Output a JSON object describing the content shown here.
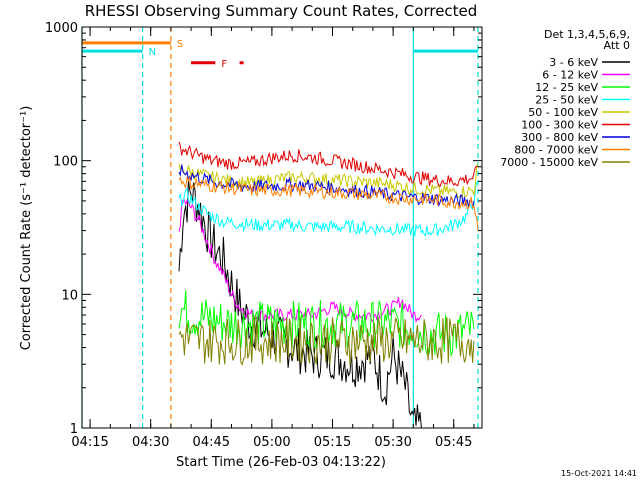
{
  "page": {
    "title": "RHESSI Observing Summary Count Rates, Corrected",
    "timestamp": "15-Oct-2021 14:41"
  },
  "chart_data": {
    "type": "line",
    "title": "RHESSI Observing Summary Count Rates, Corrected",
    "xlabel": "Start Time (26-Feb-03 04:13:22)",
    "ylabel": "Corrected Count Rate (s⁻¹ detector⁻¹)",
    "y_scale": "log",
    "ylim": [
      1,
      1000
    ],
    "xlim": [
      "04:13",
      "05:52"
    ],
    "grid": false,
    "legend_position": "right",
    "legend_header": [
      "Det 1,3,4,5,6,9,",
      "Att 0"
    ],
    "x_ticks": [
      "04:15",
      "04:30",
      "04:45",
      "05:00",
      "05:15",
      "05:30",
      "05:45"
    ],
    "y_ticks": [
      {
        "value": 1,
        "label": "1"
      },
      {
        "value": 10,
        "label": "10"
      },
      {
        "value": 100,
        "label": "100"
      },
      {
        "value": 1000,
        "label": "1000"
      }
    ],
    "flag_bars": [
      {
        "label": "S",
        "color": "#ff8000",
        "segments": [
          [
            "04:13",
            "04:35"
          ]
        ],
        "level": 760
      },
      {
        "label": "N",
        "color": "#00e0e0",
        "segments": [
          [
            "04:13",
            "04:28"
          ],
          [
            "05:35",
            "05:51"
          ]
        ],
        "level": 660
      },
      {
        "label": "F",
        "color": "#e00000",
        "segments": [
          [
            "04:40",
            "04:46"
          ],
          [
            "04:52",
            "04:53"
          ]
        ],
        "level": 540
      }
    ],
    "vertical_markers": [
      {
        "time": "04:13",
        "color": "#00e0e0",
        "style": "solid"
      },
      {
        "time": "04:28",
        "color": "#00e0e0",
        "style": "dashed"
      },
      {
        "time": "04:35",
        "color": "#ff8000",
        "style": "dashed"
      },
      {
        "time": "05:35",
        "color": "#00e0e0",
        "style": "solid"
      },
      {
        "time": "05:51",
        "color": "#00e0e0",
        "style": "dashed"
      }
    ],
    "series": [
      {
        "name": "3 - 6 keV",
        "color": "#000000",
        "x": [
          "04:37",
          "04:38",
          "04:40",
          "04:42",
          "04:44",
          "04:46",
          "04:48",
          "04:50",
          "04:52",
          "04:55",
          "05:00",
          "05:05",
          "05:10",
          "05:15",
          "05:20",
          "05:25",
          "05:28",
          "05:30",
          "05:33",
          "05:35",
          "05:37"
        ],
        "y": [
          15,
          40,
          60,
          45,
          30,
          22,
          18,
          12,
          8,
          6,
          5,
          4,
          3.5,
          3.5,
          3,
          3.5,
          2,
          3.5,
          2,
          1,
          1
        ]
      },
      {
        "name": "6 - 12 keV",
        "color": "#ff00ff",
        "x": [
          "04:37",
          "04:38",
          "04:40",
          "04:42",
          "04:44",
          "04:46",
          "04:48",
          "04:50",
          "04:52",
          "04:55",
          "05:00",
          "05:05",
          "05:10",
          "05:15",
          "05:20",
          "05:25",
          "05:30",
          "05:32",
          "05:35",
          "05:37"
        ],
        "y": [
          30,
          50,
          45,
          35,
          25,
          18,
          14,
          10,
          8,
          7,
          7,
          7,
          7,
          8,
          7,
          7,
          8,
          9,
          7,
          7
        ]
      },
      {
        "name": "12 - 25 keV",
        "color": "#00ff00",
        "x": [
          "04:37",
          "04:40",
          "04:45",
          "04:50",
          "04:55",
          "05:00",
          "05:05",
          "05:10",
          "05:15",
          "05:20",
          "05:25",
          "05:30",
          "05:35",
          "05:40",
          "05:45",
          "05:50"
        ],
        "y": [
          8,
          7,
          6.5,
          6,
          6,
          6,
          6,
          6,
          6,
          6,
          6,
          6,
          5.5,
          5,
          5,
          5.5
        ]
      },
      {
        "name": "25 - 50 keV",
        "color": "#00ffff",
        "x": [
          "04:37",
          "04:39",
          "04:41",
          "04:44",
          "04:48",
          "04:52",
          "04:56",
          "05:00",
          "05:05",
          "05:10",
          "05:15",
          "05:20",
          "05:25",
          "05:30",
          "05:35",
          "05:40",
          "05:45",
          "05:48",
          "05:50",
          "05:51"
        ],
        "y": [
          50,
          55,
          48,
          40,
          35,
          34,
          33,
          33,
          33,
          32,
          32,
          32,
          31,
          31,
          30,
          30,
          33,
          38,
          50,
          70
        ]
      },
      {
        "name": "50 - 100 keV",
        "color": "#c8c800",
        "x": [
          "04:37",
          "04:40",
          "04:45",
          "04:50",
          "04:55",
          "05:00",
          "05:05",
          "05:10",
          "05:15",
          "05:20",
          "05:25",
          "05:30",
          "05:35",
          "05:40",
          "05:45",
          "05:50",
          "05:51"
        ],
        "y": [
          88,
          82,
          75,
          70,
          68,
          72,
          75,
          74,
          72,
          70,
          68,
          66,
          62,
          60,
          58,
          60,
          95
        ]
      },
      {
        "name": "100 - 300 keV",
        "color": "#e00000",
        "x": [
          "04:37",
          "04:40",
          "04:45",
          "04:50",
          "04:55",
          "05:00",
          "05:05",
          "05:10",
          "05:15",
          "05:20",
          "05:25",
          "05:30",
          "05:35",
          "05:40",
          "05:45",
          "05:50",
          "05:51"
        ],
        "y": [
          125,
          115,
          100,
          95,
          97,
          105,
          110,
          106,
          100,
          94,
          88,
          82,
          76,
          72,
          70,
          75,
          90
        ]
      },
      {
        "name": "300 - 800 keV",
        "color": "#0000e0",
        "x": [
          "04:37",
          "04:40",
          "04:45",
          "04:50",
          "04:55",
          "05:00",
          "05:05",
          "05:10",
          "05:15",
          "05:20",
          "05:25",
          "05:30",
          "05:35",
          "05:40",
          "05:45",
          "05:50"
        ],
        "y": [
          85,
          78,
          70,
          66,
          64,
          65,
          66,
          65,
          63,
          60,
          58,
          55,
          53,
          52,
          50,
          50
        ]
      },
      {
        "name": "800 - 7000 keV",
        "color": "#ff8000",
        "x": [
          "04:37",
          "04:40",
          "04:45",
          "04:50",
          "04:55",
          "05:00",
          "05:05",
          "05:10",
          "05:15",
          "05:20",
          "05:25",
          "05:30",
          "05:35",
          "05:40",
          "05:45",
          "05:50",
          "05:51"
        ],
        "y": [
          72,
          68,
          65,
          62,
          60,
          60,
          60,
          59,
          58,
          57,
          55,
          53,
          52,
          51,
          49,
          48,
          30
        ]
      },
      {
        "name": "7000 - 15000 keV",
        "color": "#808000",
        "x": [
          "04:37",
          "04:40",
          "04:45",
          "04:50",
          "04:55",
          "05:00",
          "05:05",
          "05:10",
          "05:15",
          "05:20",
          "05:25",
          "05:30",
          "05:35",
          "05:40",
          "05:45",
          "05:50"
        ],
        "y": [
          5,
          4.5,
          4.5,
          4.5,
          4.5,
          4.5,
          4.5,
          4.5,
          4.5,
          4.5,
          4.5,
          4.5,
          4.5,
          4.5,
          4.5,
          4.5
        ]
      }
    ]
  }
}
